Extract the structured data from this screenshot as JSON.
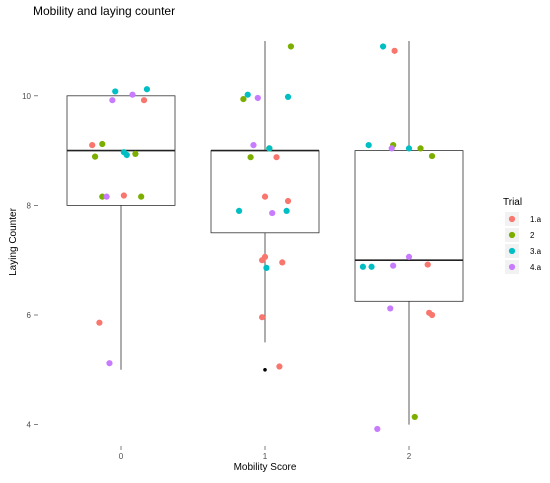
{
  "chart_data": {
    "type": "boxplot",
    "title": "Mobility and laying counter",
    "xlabel": "Mobility Score",
    "ylabel": "Laying Counter",
    "categories": [
      "0",
      "1",
      "2"
    ],
    "yticks": [
      4,
      6,
      8,
      10
    ],
    "ylim": [
      3.75,
      11.1
    ],
    "grid": false,
    "legend": {
      "title": "Trial",
      "placement": "right",
      "entries": [
        {
          "label": "1.a",
          "color": "#F8766D"
        },
        {
          "label": "2",
          "color": "#7CAE00"
        },
        {
          "label": "3.a",
          "color": "#00BFC4"
        },
        {
          "label": "4.a",
          "color": "#C77CFF"
        }
      ]
    },
    "boxes": [
      {
        "category": "0",
        "lower_whisker": 5.0,
        "q1": 8.0,
        "median": 9.0,
        "q3": 10.0,
        "upper_whisker": 10.0,
        "outliers": []
      },
      {
        "category": "1",
        "lower_whisker": 5.5,
        "q1": 7.5,
        "median": 9.0,
        "q3": 9.0,
        "upper_whisker": 11.0,
        "outliers": [
          5.0
        ]
      },
      {
        "category": "2",
        "lower_whisker": 4.0,
        "q1": 6.25,
        "median": 7.0,
        "q3": 9.0,
        "upper_whisker": 11.0,
        "outliers": []
      }
    ],
    "series": [
      {
        "name": "1.a",
        "color": "#F8766D",
        "points": [
          {
            "x": -0.2,
            "y": 9.1
          },
          {
            "x": 0.16,
            "y": 9.92
          },
          {
            "x": -0.15,
            "y": 5.86
          },
          {
            "x": 0.02,
            "y": 8.18
          },
          {
            "x": 0.98,
            "y": 7.0
          },
          {
            "x": 1.12,
            "y": 6.96
          },
          {
            "x": 1.16,
            "y": 8.08
          },
          {
            "x": 1.08,
            "y": 8.88
          },
          {
            "x": 0.98,
            "y": 5.96
          },
          {
            "x": 1.1,
            "y": 5.06
          },
          {
            "x": 1.0,
            "y": 8.16
          },
          {
            "x": 1.0,
            "y": 7.06
          },
          {
            "x": 1.9,
            "y": 10.82
          },
          {
            "x": 2.13,
            "y": 6.92
          },
          {
            "x": 2.14,
            "y": 6.04
          },
          {
            "x": 2.16,
            "y": 6.0
          }
        ]
      },
      {
        "name": "2",
        "color": "#7CAE00",
        "points": [
          {
            "x": -0.13,
            "y": 9.12
          },
          {
            "x": -0.18,
            "y": 8.89
          },
          {
            "x": -0.13,
            "y": 8.16
          },
          {
            "x": 0.14,
            "y": 8.16
          },
          {
            "x": 0.1,
            "y": 8.94
          },
          {
            "x": 0.85,
            "y": 9.94
          },
          {
            "x": 0.9,
            "y": 8.88
          },
          {
            "x": 1.18,
            "y": 10.9
          },
          {
            "x": 1.03,
            "y": 9.04
          },
          {
            "x": 2.16,
            "y": 8.9
          },
          {
            "x": 2.08,
            "y": 9.04
          },
          {
            "x": 1.89,
            "y": 9.1
          },
          {
            "x": 2.04,
            "y": 4.14
          }
        ]
      },
      {
        "name": "3.a",
        "color": "#00BFC4",
        "points": [
          {
            "x": -0.04,
            "y": 10.08
          },
          {
            "x": 0.18,
            "y": 10.12
          },
          {
            "x": 0.02,
            "y": 8.97
          },
          {
            "x": 0.04,
            "y": 8.92
          },
          {
            "x": 0.88,
            "y": 10.02
          },
          {
            "x": 1.16,
            "y": 9.98
          },
          {
            "x": 1.03,
            "y": 9.04
          },
          {
            "x": 0.82,
            "y": 7.9
          },
          {
            "x": 1.01,
            "y": 6.86
          },
          {
            "x": 1.15,
            "y": 7.9
          },
          {
            "x": 1.82,
            "y": 10.9
          },
          {
            "x": 1.72,
            "y": 9.1
          },
          {
            "x": 2.0,
            "y": 9.04
          },
          {
            "x": 1.68,
            "y": 6.88
          },
          {
            "x": 1.74,
            "y": 6.88
          }
        ]
      },
      {
        "name": "4.a",
        "color": "#C77CFF",
        "points": [
          {
            "x": -0.06,
            "y": 9.92
          },
          {
            "x": 0.08,
            "y": 10.02
          },
          {
            "x": -0.1,
            "y": 8.16
          },
          {
            "x": -0.08,
            "y": 5.12
          },
          {
            "x": 0.95,
            "y": 9.96
          },
          {
            "x": 0.92,
            "y": 9.1
          },
          {
            "x": 1.05,
            "y": 7.86
          },
          {
            "x": 1.88,
            "y": 9.04
          },
          {
            "x": 2.0,
            "y": 7.06
          },
          {
            "x": 1.89,
            "y": 6.9
          },
          {
            "x": 1.87,
            "y": 6.12
          },
          {
            "x": 1.78,
            "y": 3.92
          }
        ]
      }
    ]
  }
}
